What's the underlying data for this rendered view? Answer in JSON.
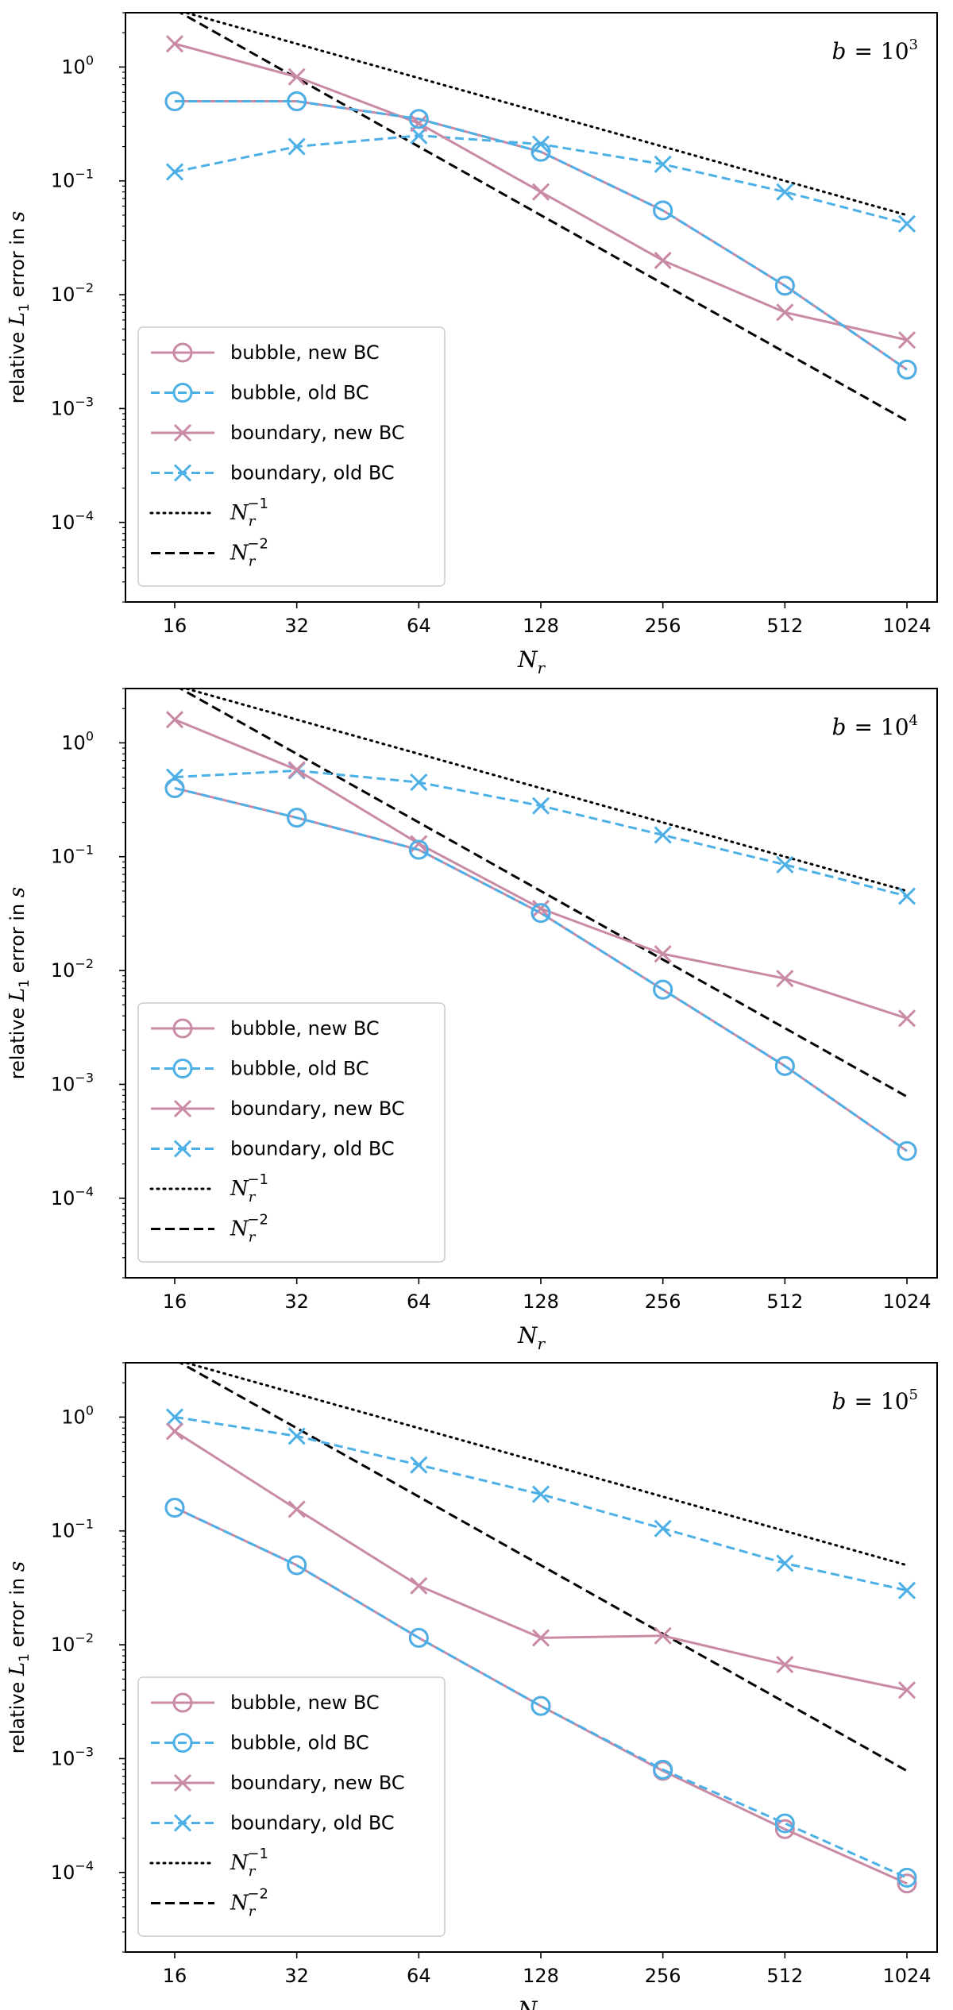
{
  "figure": {
    "colors": {
      "bubble_new": "#c98aa6",
      "bubble_old": "#4cb0e6",
      "boundary_new": "#c98aa6",
      "boundary_old": "#4cb0e6",
      "ref": "#000000"
    }
  },
  "chart_data": [
    {
      "type": "line",
      "title": "b = 10^3",
      "panel_label": {
        "lhs": "b",
        "eq": "=",
        "base": "10",
        "exp": "3"
      },
      "xlabel": "N_r",
      "xlabel_parts": {
        "main": "N",
        "sub": "r"
      },
      "ylabel_parts": {
        "pre": "relative ",
        "main": "L",
        "sub": "1",
        "post": " error in ",
        "var": "s"
      },
      "xscale": "log2",
      "yscale": "log10",
      "xlim": [
        12.5,
        1300
      ],
      "ylim": [
        2e-05,
        3.0
      ],
      "x": [
        16,
        32,
        64,
        128,
        256,
        512,
        1024
      ],
      "xtick_labels": [
        "16",
        "32",
        "64",
        "128",
        "256",
        "512",
        "1024"
      ],
      "ytick_labels": [
        {
          "base": "10",
          "exp": "0"
        },
        {
          "base": "10",
          "exp": "−1"
        },
        {
          "base": "10",
          "exp": "−2"
        },
        {
          "base": "10",
          "exp": "−3"
        },
        {
          "base": "10",
          "exp": "−4"
        }
      ],
      "series": [
        {
          "key": "bubble_new",
          "name": "bubble, new BC",
          "marker": "circle",
          "dash": "solid",
          "values": [
            0.5,
            0.5,
            0.35,
            0.18,
            0.055,
            0.012,
            0.0022
          ]
        },
        {
          "key": "bubble_old",
          "name": "bubble, old BC",
          "marker": "circle",
          "dash": "dashed",
          "values": [
            0.5,
            0.5,
            0.35,
            0.18,
            0.055,
            0.012,
            0.0022
          ]
        },
        {
          "key": "boundary_new",
          "name": "boundary, new BC",
          "marker": "x",
          "dash": "solid",
          "values": [
            1.6,
            0.82,
            0.32,
            0.08,
            0.02,
            0.007,
            0.004
          ]
        },
        {
          "key": "boundary_old",
          "name": "boundary, old BC",
          "marker": "x",
          "dash": "dashed",
          "values": [
            0.12,
            0.2,
            0.25,
            0.21,
            0.14,
            0.08,
            0.042
          ]
        }
      ],
      "reference_lines": [
        {
          "key": "ref1",
          "name": "N_r^-1",
          "label_parts": {
            "main": "N",
            "sub": "r",
            "exp": "−1"
          },
          "style": "dotted",
          "x": [
            16,
            1024
          ],
          "values": [
            3.2,
            0.05
          ]
        },
        {
          "key": "ref2",
          "name": "N_r^-2",
          "label_parts": {
            "main": "N",
            "sub": "r",
            "exp": "−2"
          },
          "style": "dashed",
          "x": [
            16,
            1024
          ],
          "values": [
            3.2,
            0.00078
          ]
        }
      ]
    },
    {
      "type": "line",
      "title": "b = 10^4",
      "panel_label": {
        "lhs": "b",
        "eq": "=",
        "base": "10",
        "exp": "4"
      },
      "xlabel": "N_r",
      "xlabel_parts": {
        "main": "N",
        "sub": "r"
      },
      "ylabel_parts": {
        "pre": "relative ",
        "main": "L",
        "sub": "1",
        "post": " error in ",
        "var": "s"
      },
      "xscale": "log2",
      "yscale": "log10",
      "xlim": [
        12.5,
        1300
      ],
      "ylim": [
        2e-05,
        3.0
      ],
      "x": [
        16,
        32,
        64,
        128,
        256,
        512,
        1024
      ],
      "xtick_labels": [
        "16",
        "32",
        "64",
        "128",
        "256",
        "512",
        "1024"
      ],
      "ytick_labels": [
        {
          "base": "10",
          "exp": "0"
        },
        {
          "base": "10",
          "exp": "−1"
        },
        {
          "base": "10",
          "exp": "−2"
        },
        {
          "base": "10",
          "exp": "−3"
        },
        {
          "base": "10",
          "exp": "−4"
        }
      ],
      "series": [
        {
          "key": "bubble_new",
          "name": "bubble, new BC",
          "marker": "circle",
          "dash": "solid",
          "values": [
            0.4,
            0.22,
            0.115,
            0.032,
            0.0068,
            0.00145,
            0.00026
          ]
        },
        {
          "key": "bubble_old",
          "name": "bubble, old BC",
          "marker": "circle",
          "dash": "dashed",
          "values": [
            0.4,
            0.22,
            0.115,
            0.032,
            0.0068,
            0.00145,
            0.00026
          ]
        },
        {
          "key": "boundary_new",
          "name": "boundary, new BC",
          "marker": "x",
          "dash": "solid",
          "values": [
            1.6,
            0.58,
            0.13,
            0.035,
            0.014,
            0.0085,
            0.0038
          ]
        },
        {
          "key": "boundary_old",
          "name": "boundary, old BC",
          "marker": "x",
          "dash": "dashed",
          "values": [
            0.5,
            0.57,
            0.45,
            0.28,
            0.155,
            0.085,
            0.045
          ]
        }
      ],
      "reference_lines": [
        {
          "key": "ref1",
          "name": "N_r^-1",
          "label_parts": {
            "main": "N",
            "sub": "r",
            "exp": "−1"
          },
          "style": "dotted",
          "x": [
            16,
            1024
          ],
          "values": [
            3.2,
            0.05
          ]
        },
        {
          "key": "ref2",
          "name": "N_r^-2",
          "label_parts": {
            "main": "N",
            "sub": "r",
            "exp": "−2"
          },
          "style": "dashed",
          "x": [
            16,
            1024
          ],
          "values": [
            3.2,
            0.00078
          ]
        }
      ]
    },
    {
      "type": "line",
      "title": "b = 10^5",
      "panel_label": {
        "lhs": "b",
        "eq": "=",
        "base": "10",
        "exp": "5"
      },
      "xlabel": "N_r",
      "xlabel_parts": {
        "main": "N",
        "sub": "r"
      },
      "ylabel_parts": {
        "pre": "relative ",
        "main": "L",
        "sub": "1",
        "post": " error in ",
        "var": "s"
      },
      "xscale": "log2",
      "yscale": "log10",
      "xlim": [
        12.5,
        1300
      ],
      "ylim": [
        2e-05,
        3.0
      ],
      "x": [
        16,
        32,
        64,
        128,
        256,
        512,
        1024
      ],
      "xtick_labels": [
        "16",
        "32",
        "64",
        "128",
        "256",
        "512",
        "1024"
      ],
      "ytick_labels": [
        {
          "base": "10",
          "exp": "0"
        },
        {
          "base": "10",
          "exp": "−1"
        },
        {
          "base": "10",
          "exp": "−2"
        },
        {
          "base": "10",
          "exp": "−3"
        },
        {
          "base": "10",
          "exp": "−4"
        }
      ],
      "series": [
        {
          "key": "bubble_new",
          "name": "bubble, new BC",
          "marker": "circle",
          "dash": "solid",
          "values": [
            0.16,
            0.05,
            0.0115,
            0.0029,
            0.00078,
            0.00024,
            8e-05
          ]
        },
        {
          "key": "bubble_old",
          "name": "bubble, old BC",
          "marker": "circle",
          "dash": "dashed",
          "values": [
            0.16,
            0.05,
            0.0115,
            0.0029,
            0.0008,
            0.00027,
            9e-05
          ]
        },
        {
          "key": "boundary_new",
          "name": "boundary, new BC",
          "marker": "x",
          "dash": "solid",
          "values": [
            0.75,
            0.155,
            0.033,
            0.0115,
            0.012,
            0.0067,
            0.004
          ]
        },
        {
          "key": "boundary_old",
          "name": "boundary, old BC",
          "marker": "x",
          "dash": "dashed",
          "values": [
            1.0,
            0.68,
            0.38,
            0.21,
            0.105,
            0.052,
            0.03
          ]
        }
      ],
      "reference_lines": [
        {
          "key": "ref1",
          "name": "N_r^-1",
          "label_parts": {
            "main": "N",
            "sub": "r",
            "exp": "−1"
          },
          "style": "dotted",
          "x": [
            16,
            1024
          ],
          "values": [
            3.2,
            0.05
          ]
        },
        {
          "key": "ref2",
          "name": "N_r^-2",
          "label_parts": {
            "main": "N",
            "sub": "r",
            "exp": "−2"
          },
          "style": "dashed",
          "x": [
            16,
            1024
          ],
          "values": [
            3.2,
            0.00078
          ]
        }
      ]
    }
  ]
}
